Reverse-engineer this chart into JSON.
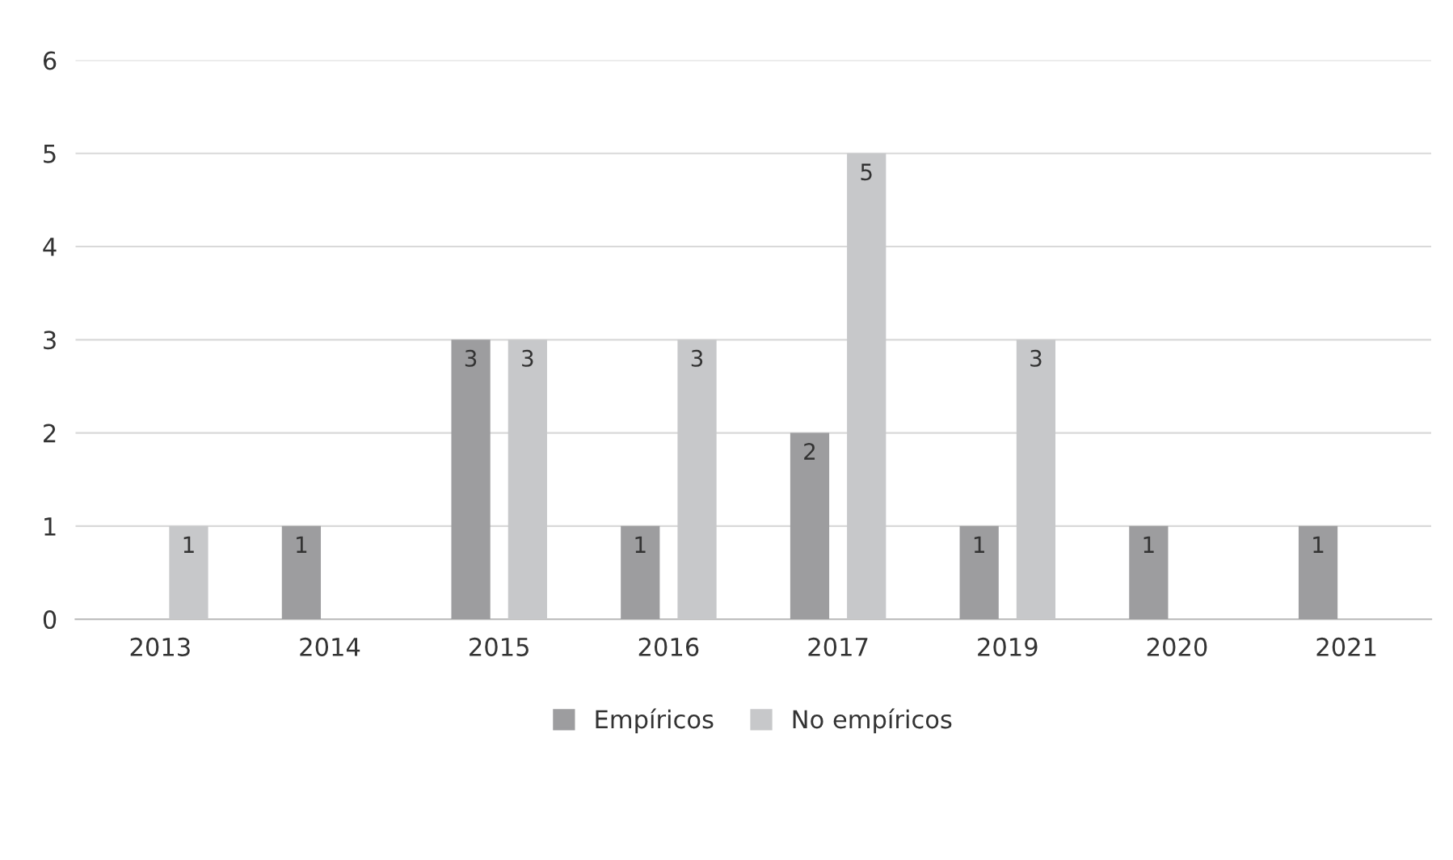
{
  "chart_data": {
    "type": "bar",
    "categories": [
      "2013",
      "2014",
      "2015",
      "2016",
      "2017",
      "2019",
      "2020",
      "2021"
    ],
    "series": [
      {
        "name": "Empíricos",
        "color": "#9d9d9f",
        "values": [
          0,
          1,
          3,
          1,
          2,
          1,
          1,
          1
        ],
        "value_labels": [
          null,
          "1",
          "3",
          "1",
          "2",
          "1",
          "1",
          "1"
        ]
      },
      {
        "name": "No empíricos",
        "color": "#c7c8ca",
        "values": [
          1,
          0,
          3,
          3,
          5,
          3,
          0,
          0
        ],
        "value_labels": [
          "1",
          null,
          "3",
          "3",
          "5",
          "3",
          null,
          null
        ]
      }
    ],
    "ylim": [
      0,
      6
    ],
    "yticks": [
      0,
      1,
      2,
      3,
      4,
      5,
      6
    ],
    "grid": "y",
    "legend": "bottom"
  }
}
